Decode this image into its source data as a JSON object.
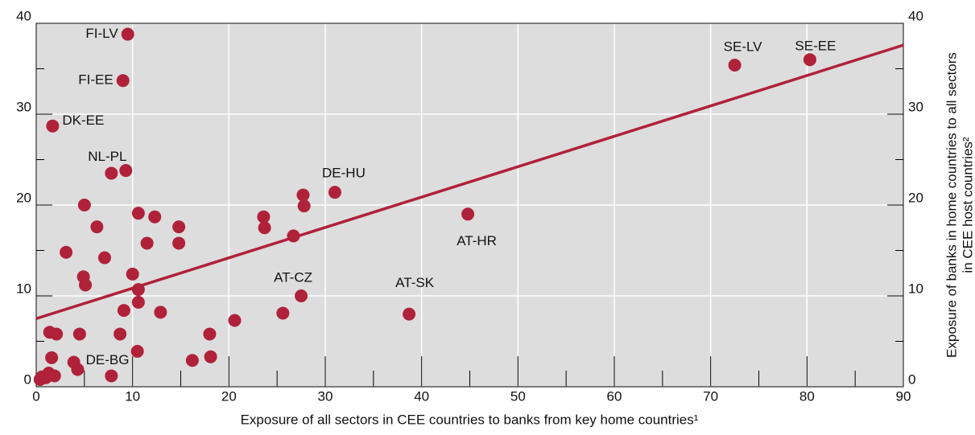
{
  "chart_data": {
    "type": "scatter",
    "x_label": "Exposure of all sectors in CEE countries to banks from key home countries¹",
    "y2_label": [
      "Exposure of banks in home countries to all sectors",
      "in CEE host countries²"
    ],
    "color": "#b0213a",
    "background": "#dddddd",
    "grid": true,
    "xlim": [
      0,
      90
    ],
    "xticks": [
      0,
      10,
      20,
      30,
      40,
      50,
      60,
      70,
      80,
      90
    ],
    "ylim": [
      0,
      40
    ],
    "yticks": [
      0,
      10,
      20,
      30,
      40
    ],
    "y2lim": [
      0,
      40
    ],
    "y2ticks": [
      0,
      10,
      20,
      30,
      40
    ],
    "x": [
      9.5,
      9.0,
      1.7,
      7.8,
      72.5,
      80.3,
      31.0,
      44.8,
      27.5,
      38.7,
      3.9,
      9.3,
      5.0,
      6.3,
      3.1,
      7.1,
      4.9,
      5.1,
      10.0,
      10.6,
      10.6,
      9.1,
      12.9,
      10.6,
      12.3,
      11.5,
      14.8,
      14.8,
      23.6,
      23.7,
      27.7,
      27.8,
      26.7,
      25.6,
      20.6,
      18.0,
      18.1,
      16.2,
      8.7,
      10.5,
      4.5,
      1.4,
      2.1,
      1.6,
      4.3,
      7.8,
      1.9,
      1.3,
      0.6,
      0.4,
      1.0
    ],
    "values": [
      38.8,
      33.7,
      28.7,
      23.5,
      35.4,
      36.0,
      21.4,
      19.0,
      10.0,
      8.0,
      2.7,
      23.8,
      20.0,
      17.6,
      14.8,
      14.2,
      12.1,
      11.2,
      12.4,
      10.7,
      9.3,
      8.4,
      8.2,
      19.1,
      18.7,
      15.8,
      17.6,
      15.8,
      18.7,
      17.5,
      21.1,
      19.9,
      16.6,
      8.1,
      7.3,
      5.8,
      3.3,
      2.9,
      5.8,
      3.9,
      5.8,
      6.0,
      5.8,
      3.2,
      1.9,
      1.2,
      1.2,
      1.5,
      1.1,
      0.8,
      1.0
    ],
    "point_labels": [
      "FI-LV",
      "FI-EE",
      "DK-EE",
      "NL-PL",
      "SE-LV",
      "SE-EE",
      "DE-HU",
      "AT-HR",
      "AT-CZ",
      "AT-SK",
      "DE-BG",
      null,
      null,
      null,
      null,
      null,
      null,
      null,
      null,
      null,
      null,
      null,
      null,
      null,
      null,
      null,
      null,
      null,
      null,
      null,
      null,
      null,
      null,
      null,
      null,
      null,
      null,
      null,
      null,
      null,
      null,
      null,
      null,
      null,
      null,
      null,
      null,
      null,
      null,
      null,
      null
    ],
    "trend_line": {
      "x": [
        0,
        90
      ],
      "values": [
        7.5,
        37.6
      ]
    }
  }
}
